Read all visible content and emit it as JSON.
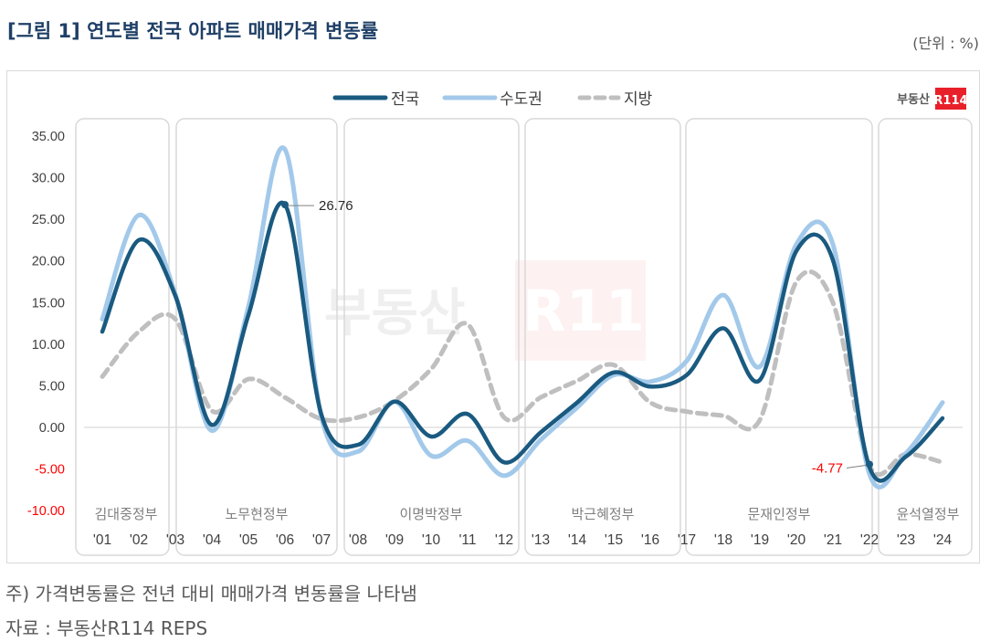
{
  "header": {
    "title": "[그림 1] 연도별 전국 아파트 매매가격 변동률",
    "unit": "(단위 : %)"
  },
  "legend": {
    "items": [
      {
        "label": "전국",
        "color": "#1a5a80",
        "style": "solid"
      },
      {
        "label": "수도권",
        "color": "#a3c9ea",
        "style": "solid"
      },
      {
        "label": "지방",
        "color": "#bfbfbf",
        "style": "dashed"
      }
    ]
  },
  "logo": {
    "text": "부동산",
    "badge": "R114",
    "badge_color": "#e8202a"
  },
  "watermark": {
    "text": "부동산",
    "badge": "R114"
  },
  "footer": {
    "note": "주) 가격변동률은 전년 대비 매매가격 변동률을 나타냄",
    "source": "자료 : 부동산R114 REPS"
  },
  "governments": [
    {
      "name": "김대중정부",
      "years": [
        "'01",
        "'02"
      ]
    },
    {
      "name": "노무현정부",
      "years": [
        "'03",
        "'04",
        "'05",
        "'06",
        "'07"
      ]
    },
    {
      "name": "이명박정부",
      "years": [
        "'08",
        "'09",
        "'10",
        "'11",
        "'12"
      ]
    },
    {
      "name": "박근혜정부",
      "years": [
        "'13",
        "'14",
        "'15",
        "'16",
        "'17"
      ]
    },
    {
      "name": "문재인정부",
      "years": [
        "'18",
        "'19",
        "'20",
        "'21",
        "'22"
      ]
    },
    {
      "name": "윤석열정부",
      "years": [
        "'23",
        "'24"
      ]
    }
  ],
  "annotations": [
    {
      "year": "'06",
      "series": "전국",
      "label": "26.76",
      "color": "#262626"
    },
    {
      "year": "'22",
      "series": "전국",
      "label": "-4.77",
      "color": "#ff0000"
    }
  ],
  "chart_data": {
    "type": "line",
    "title": "[그림 1] 연도별 전국 아파트 매매가격 변동률",
    "xlabel": "",
    "ylabel": "(단위 : %)",
    "ylim": [
      -10,
      35
    ],
    "yticks": [
      "35.00",
      "30.00",
      "25.00",
      "20.00",
      "15.00",
      "10.00",
      "5.00",
      "0.00",
      "-5.00",
      "-10.00"
    ],
    "negative_tick_color": "#ff0000",
    "grid": false,
    "legend_position": "top",
    "x": [
      "'01",
      "'02",
      "'03",
      "'04",
      "'05",
      "'06",
      "'07",
      "'08",
      "'09",
      "'10",
      "'11",
      "'12",
      "'13",
      "'14",
      "'15",
      "'16",
      "'17",
      "'18",
      "'19",
      "'20",
      "'21",
      "'22",
      "'23",
      "'24"
    ],
    "series": [
      {
        "name": "전국",
        "values": [
          11.5,
          22.5,
          15.8,
          0.3,
          13.5,
          26.76,
          1.5,
          -2.1,
          3.1,
          -1.1,
          1.6,
          -4.2,
          -0.6,
          3.0,
          6.6,
          4.9,
          6.3,
          11.9,
          5.7,
          21.2,
          20.1,
          -4.77,
          -3.5,
          1.1
        ]
      },
      {
        "name": "수도권",
        "values": [
          13.0,
          25.5,
          16.0,
          -0.4,
          14.5,
          33.4,
          1.2,
          -2.9,
          3.1,
          -3.4,
          -1.6,
          -5.8,
          -1.5,
          2.4,
          6.3,
          5.5,
          8.0,
          15.9,
          7.3,
          22.0,
          22.0,
          -5.6,
          -3.1,
          3.0
        ]
      },
      {
        "name": "지방",
        "values": [
          6.1,
          11.5,
          13.0,
          2.0,
          5.8,
          3.6,
          1.0,
          1.2,
          3.2,
          7.0,
          12.4,
          1.2,
          3.6,
          5.6,
          7.5,
          3.0,
          1.9,
          1.4,
          0.9,
          17.5,
          15.0,
          -4.6,
          -3.2,
          -4.2
        ]
      }
    ],
    "period_groups": [
      "김대중정부",
      "노무현정부",
      "이명박정부",
      "박근혜정부",
      "문재인정부",
      "윤석열정부"
    ]
  }
}
